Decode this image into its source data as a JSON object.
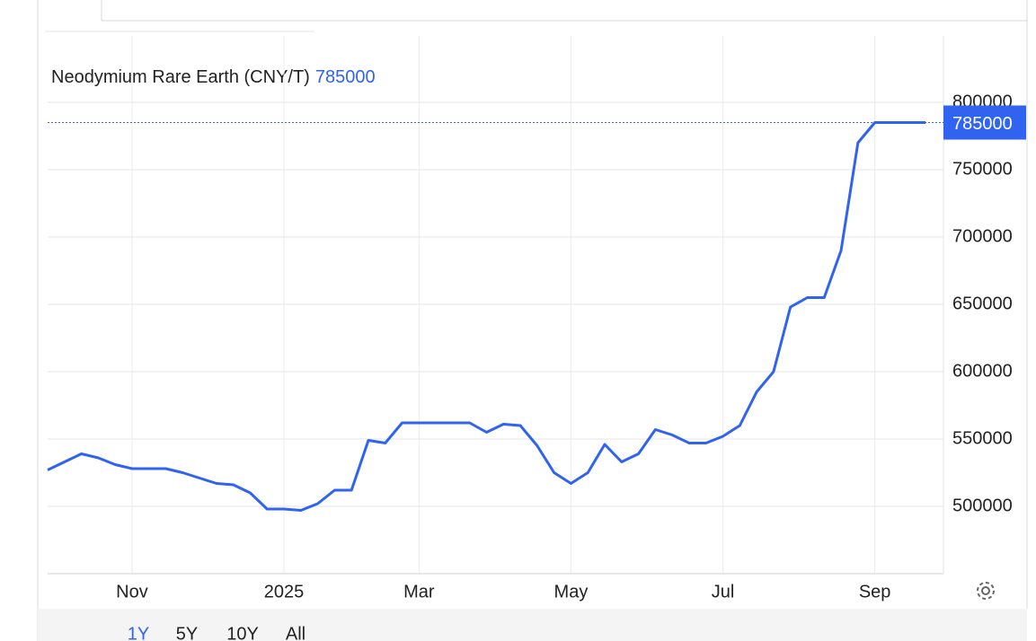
{
  "chart_data": {
    "type": "line",
    "title": "Neodymium Rare Earth (CNY/T)",
    "last_value": 785000,
    "categories": [
      null,
      null,
      null,
      null,
      null,
      "Nov",
      null,
      null,
      null,
      null,
      null,
      null,
      null,
      null,
      "2025",
      null,
      null,
      null,
      null,
      null,
      null,
      null,
      "Mar",
      null,
      null,
      null,
      null,
      null,
      null,
      null,
      null,
      "May",
      null,
      null,
      null,
      null,
      null,
      null,
      null,
      null,
      "Jul",
      null,
      null,
      null,
      null,
      null,
      null,
      null,
      null,
      "Sep",
      null,
      null,
      null
    ],
    "series": [
      {
        "color": "#2f63f0",
        "values": [
          527000,
          533000,
          539000,
          536000,
          531000,
          528000,
          528000,
          528000,
          525000,
          521000,
          517000,
          516000,
          510000,
          498000,
          498000,
          497000,
          502000,
          512000,
          512000,
          549000,
          547000,
          562000,
          562000,
          562000,
          562000,
          562000,
          555000,
          561000,
          560000,
          545000,
          525000,
          517000,
          525000,
          546000,
          533000,
          539000,
          557000,
          553000,
          547000,
          547000,
          552000,
          560000,
          585000,
          600000,
          648000,
          655000,
          655000,
          690000,
          770000,
          785000,
          785000,
          785000,
          785000
        ]
      }
    ],
    "ylim": [
      450000,
      810000
    ],
    "yticks": [
      500000,
      550000,
      600000,
      650000,
      700000,
      750000,
      800000
    ],
    "grid": true,
    "ranges": [
      "1Y",
      "5Y",
      "10Y",
      "All"
    ]
  }
}
